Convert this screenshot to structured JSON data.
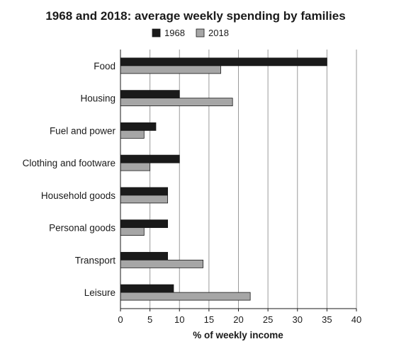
{
  "chart_data": {
    "type": "bar",
    "orientation": "horizontal",
    "title": "1968 and 2018: average weekly spending by families",
    "xlabel": "% of weekly income",
    "ylabel": "",
    "categories": [
      "Food",
      "Housing",
      "Fuel and power",
      "Clothing and footware",
      "Household goods",
      "Personal goods",
      "Transport",
      "Leisure"
    ],
    "series": [
      {
        "name": "1968",
        "color": "#1a1a1a",
        "values": [
          35,
          10,
          6,
          10,
          8,
          8,
          8,
          9
        ]
      },
      {
        "name": "2018",
        "color": "#a6a6a6",
        "values": [
          17,
          19,
          4,
          5,
          8,
          4,
          14,
          22
        ]
      }
    ],
    "xlim": [
      0,
      40
    ],
    "xticks": [
      0,
      5,
      10,
      15,
      20,
      25,
      30,
      35,
      40
    ],
    "grid": "vertical",
    "legend_position": "top-center"
  }
}
